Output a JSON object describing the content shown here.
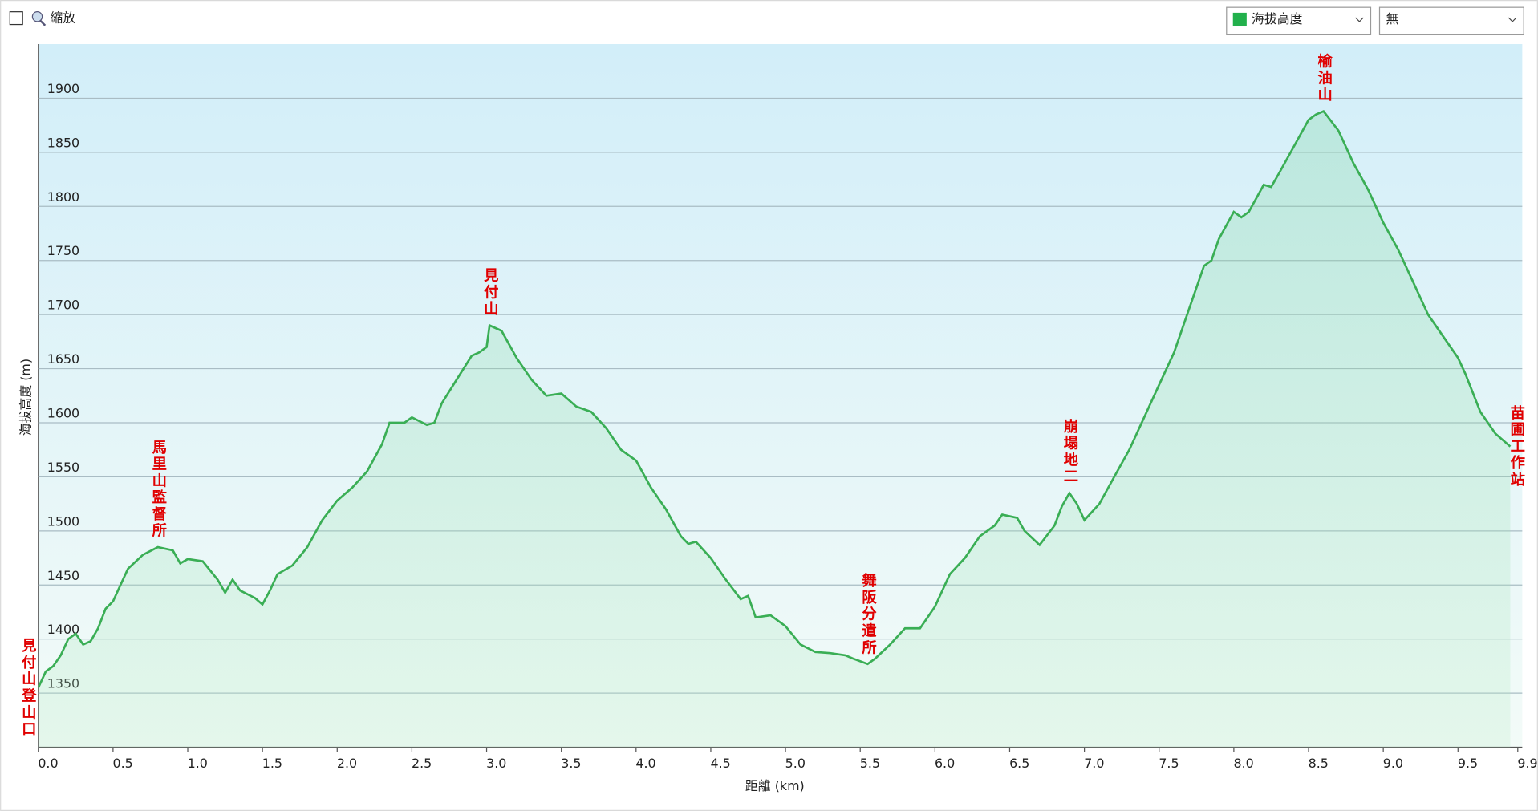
{
  "toolbar": {
    "zoom_label": "縮放",
    "series_select": "海拔高度",
    "second_select": "無"
  },
  "chart_data": {
    "type": "area",
    "x_label": "距離 (km)",
    "y_label": "海拔高度 (m)",
    "color": "#3aae55",
    "x": [
      0.0,
      0.05,
      0.1,
      0.15,
      0.2,
      0.25,
      0.3,
      0.35,
      0.4,
      0.45,
      0.5,
      0.55,
      0.6,
      0.7,
      0.8,
      0.9,
      0.95,
      1.0,
      1.1,
      1.2,
      1.25,
      1.3,
      1.35,
      1.45,
      1.5,
      1.55,
      1.6,
      1.7,
      1.8,
      1.9,
      2.0,
      2.1,
      2.2,
      2.3,
      2.35,
      2.45,
      2.5,
      2.6,
      2.65,
      2.7,
      2.8,
      2.9,
      2.95,
      3.0,
      3.02,
      3.1,
      3.2,
      3.3,
      3.4,
      3.5,
      3.6,
      3.7,
      3.8,
      3.9,
      4.0,
      4.1,
      4.2,
      4.3,
      4.35,
      4.4,
      4.5,
      4.6,
      4.7,
      4.75,
      4.8,
      4.9,
      5.0,
      5.1,
      5.2,
      5.3,
      5.4,
      5.45,
      5.55,
      5.6,
      5.7,
      5.8,
      5.9,
      6.0,
      6.1,
      6.2,
      6.3,
      6.4,
      6.45,
      6.55,
      6.6,
      6.7,
      6.8,
      6.85,
      6.9,
      6.95,
      7.0,
      7.1,
      7.2,
      7.3,
      7.4,
      7.5,
      7.6,
      7.7,
      7.8,
      7.85,
      7.9,
      8.0,
      8.05,
      8.1,
      8.2,
      8.25,
      8.3,
      8.4,
      8.5,
      8.55,
      8.6,
      8.7,
      8.8,
      8.9,
      9.0,
      9.1,
      9.2,
      9.3,
      9.4,
      9.5,
      9.55,
      9.65,
      9.75,
      9.85
    ],
    "values": [
      1355,
      1370,
      1375,
      1385,
      1400,
      1405,
      1395,
      1398,
      1410,
      1428,
      1435,
      1450,
      1465,
      1478,
      1485,
      1482,
      1470,
      1474,
      1472,
      1455,
      1443,
      1455,
      1445,
      1438,
      1432,
      1445,
      1460,
      1468,
      1485,
      1510,
      1528,
      1540,
      1555,
      1580,
      1600,
      1600,
      1605,
      1598,
      1600,
      1618,
      1640,
      1662,
      1665,
      1670,
      1690,
      1685,
      1660,
      1640,
      1625,
      1627,
      1615,
      1610,
      1595,
      1575,
      1565,
      1540,
      1520,
      1495,
      1488,
      1490,
      1475,
      1455,
      1437,
      1440,
      1420,
      1422,
      1412,
      1395,
      1388,
      1387,
      1385,
      1382,
      1377,
      1382,
      1395,
      1410,
      1410,
      1430,
      1460,
      1475,
      1495,
      1505,
      1515,
      1512,
      1500,
      1487,
      1505,
      1523,
      1535,
      1525,
      1510,
      1525,
      1550,
      1575,
      1605,
      1635,
      1665,
      1705,
      1745,
      1750,
      1770,
      1795,
      1790,
      1795,
      1820,
      1818,
      1830,
      1855,
      1880,
      1885,
      1888,
      1870,
      1840,
      1815,
      1785,
      1760,
      1730,
      1700,
      1680,
      1660,
      1645,
      1610,
      1590,
      1578
    ],
    "xlim": [
      0,
      9.93
    ],
    "ylim": [
      1300,
      1950
    ],
    "xticks": [
      {
        "value": 0,
        "label": "0.0"
      },
      0.5,
      {
        "value": 1,
        "label": "1.0"
      },
      1.5,
      {
        "value": 2,
        "label": "2.0"
      },
      2.5,
      {
        "value": 3,
        "label": "3.0"
      },
      3.5,
      {
        "value": 4,
        "label": "4.0"
      },
      4.5,
      {
        "value": 5,
        "label": "5.0"
      },
      5.5,
      {
        "value": 6,
        "label": "6.0"
      },
      6.5,
      {
        "value": 7,
        "label": "7.0"
      },
      7.5,
      {
        "value": 8,
        "label": "8.0"
      },
      8.5,
      {
        "value": 9,
        "label": "9.0"
      },
      9.5,
      9.9
    ],
    "yticks": [
      1350,
      1400,
      1450,
      1500,
      1550,
      1600,
      1650,
      1700,
      1750,
      1800,
      1850,
      1900
    ],
    "grid": true,
    "annotations": [
      {
        "text": "見付山登山口",
        "x": 0.0,
        "y": 1355
      },
      {
        "text": "馬里山監督所",
        "x": 0.8,
        "y": 1485
      },
      {
        "text": "見付山",
        "x": 3.02,
        "y": 1690
      },
      {
        "text": "舞阪分遣所",
        "x": 5.55,
        "y": 1377
      },
      {
        "text": "崩塌地二",
        "x": 6.9,
        "y": 1535
      },
      {
        "text": "榆油山",
        "x": 8.6,
        "y": 1888
      },
      {
        "text": "苗圃工作站",
        "x": 9.85,
        "y": 1578
      }
    ]
  }
}
